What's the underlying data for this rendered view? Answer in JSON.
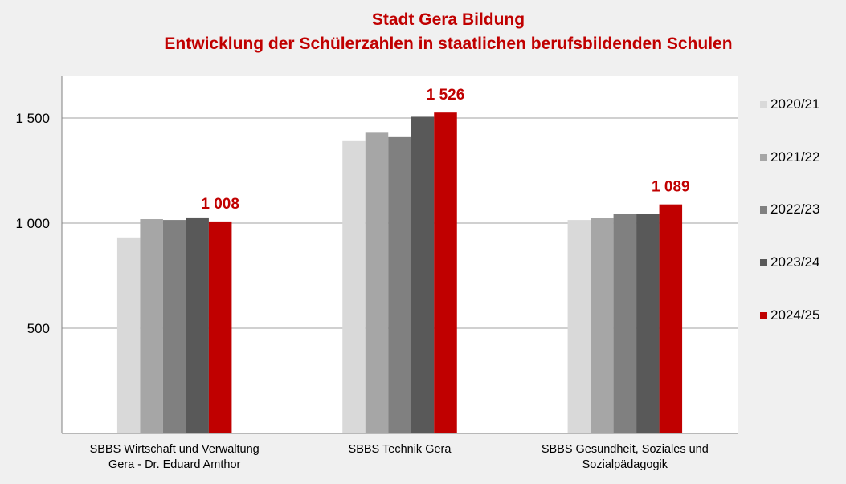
{
  "chart_data": {
    "type": "bar",
    "title": "Stadt Gera Bildung",
    "subtitle": "Entwicklung der Schülerzahlen in staatlichen berufsbildenden Schulen",
    "categories": [
      [
        "SBBS Wirtschaft und Verwaltung",
        "Gera - Dr. Eduard Amthor"
      ],
      [
        "SBBS Technik Gera"
      ],
      [
        "SBBS Gesundheit, Soziales und",
        "Sozialpädagogik"
      ]
    ],
    "series": [
      {
        "name": "2020/21",
        "color": "#d9d9d9",
        "values": [
          932,
          1390,
          1015
        ]
      },
      {
        "name": "2021/22",
        "color": "#a6a6a6",
        "values": [
          1019,
          1430,
          1023
        ]
      },
      {
        "name": "2022/23",
        "color": "#808080",
        "values": [
          1015,
          1409,
          1043
        ]
      },
      {
        "name": "2023/24",
        "color": "#595959",
        "values": [
          1027,
          1506,
          1043
        ]
      },
      {
        "name": "2024/25",
        "color": "#c00000",
        "values": [
          1008,
          1526,
          1089
        ],
        "data_labels": [
          "1 008",
          "1 526",
          "1 089"
        ]
      }
    ],
    "yticks": [
      500,
      1000,
      1500
    ],
    "ytick_labels": [
      "500",
      "1 000",
      "1 500"
    ],
    "ylim": [
      0,
      1700
    ],
    "grid": true,
    "legend": "right",
    "xlabel": "",
    "ylabel": ""
  }
}
